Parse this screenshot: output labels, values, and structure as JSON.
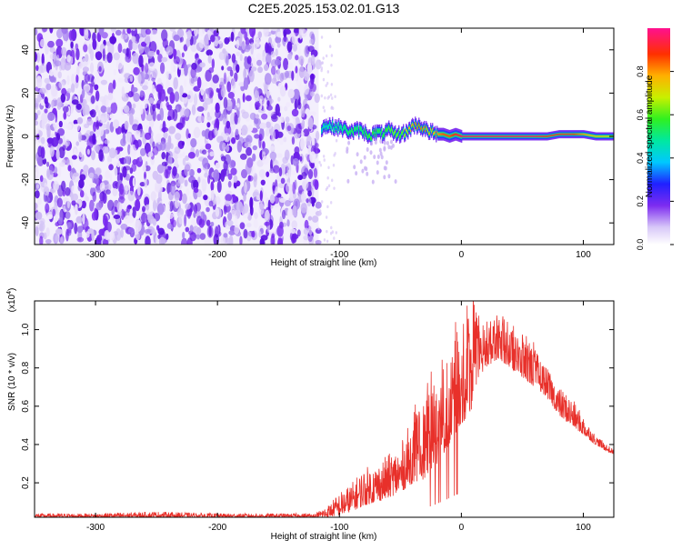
{
  "chart_data": [
    {
      "type": "heatmap",
      "title": "C2E5.2025.153.02.01.G13",
      "xlabel": "Height of straight line (km)",
      "ylabel": "Frequency (Hz)",
      "xlim": [
        -350,
        125
      ],
      "ylim": [
        -50,
        50
      ],
      "xticks": [
        -300,
        -200,
        -100,
        0,
        100
      ],
      "xtick_labels": [
        "-300",
        "-200",
        "-100",
        "0",
        "100"
      ],
      "yticks": [
        -40,
        -20,
        0,
        20,
        40
      ],
      "ytick_labels": [
        "-40",
        "-20",
        "0",
        "20",
        "40"
      ],
      "noise_region_km": [
        -350,
        -117
      ],
      "signal_track": {
        "x": [
          -115,
          -110,
          -100,
          -95,
          -90,
          -85,
          -80,
          -75,
          -70,
          -65,
          -60,
          -55,
          -50,
          -45,
          -40,
          -35,
          -30,
          -25,
          -20,
          -15,
          -10,
          -5,
          0,
          10,
          20,
          40,
          60,
          70,
          80,
          90,
          100,
          110,
          125
        ],
        "freq": [
          4,
          5,
          4,
          3,
          2,
          3,
          2,
          0,
          2,
          1,
          3,
          1,
          1,
          2,
          5,
          5,
          3,
          2,
          1,
          1,
          0,
          1,
          0,
          0,
          0,
          0,
          0,
          0,
          1,
          1,
          1,
          0,
          0
        ],
        "amplitude": [
          0.35,
          0.4,
          0.45,
          0.5,
          0.55,
          0.5,
          0.55,
          0.6,
          0.55,
          0.55,
          0.6,
          0.65,
          0.6,
          0.7,
          0.8,
          0.85,
          0.8,
          0.75,
          0.8,
          0.85,
          0.85,
          0.9,
          0.95,
          0.95,
          0.95,
          0.95,
          0.95,
          0.9,
          0.9,
          0.9,
          0.8,
          0.75,
          0.7
        ]
      },
      "colorbar": {
        "label": "Normalized spectral amplitude",
        "range": [
          0,
          1
        ],
        "ticks": [
          0.0,
          0.2,
          0.4,
          0.6,
          0.8
        ],
        "tick_labels": [
          "0.0",
          "0.2",
          "0.4",
          "0.6",
          "0.8"
        ]
      }
    },
    {
      "type": "line",
      "xlabel": "Height of straight line (km)",
      "ylabel": "SNR (10 * v/v)",
      "yscale_label": "(x10",
      "yscale_exponent": "4",
      "yscale_close": ")",
      "xlim": [
        -350,
        125
      ],
      "ylim": [
        0.02,
        1.15
      ],
      "xticks": [
        -300,
        -200,
        -100,
        0,
        100
      ],
      "xtick_labels": [
        "-300",
        "-200",
        "-100",
        "0",
        "100"
      ],
      "yticks": [
        0.2,
        0.4,
        0.6,
        0.8,
        1.0
      ],
      "ytick_labels": [
        "0.2",
        "0.4",
        "0.6",
        "0.8",
        "1.0"
      ],
      "color": "#e8302a",
      "series": [
        {
          "name": "SNR",
          "x": [
            -350,
            -300,
            -250,
            -200,
            -150,
            -120,
            -110,
            -100,
            -90,
            -80,
            -70,
            -60,
            -50,
            -40,
            -30,
            -20,
            -10,
            0,
            5,
            10,
            15,
            20,
            30,
            40,
            50,
            60,
            70,
            80,
            90,
            100,
            110,
            120,
            125
          ],
          "envelope_low": [
            0.02,
            0.02,
            0.02,
            0.02,
            0.02,
            0.02,
            0.02,
            0.03,
            0.05,
            0.08,
            0.1,
            0.12,
            0.15,
            0.2,
            0.22,
            0.3,
            0.4,
            0.5,
            0.55,
            0.6,
            0.75,
            0.8,
            0.85,
            0.8,
            0.75,
            0.7,
            0.65,
            0.55,
            0.5,
            0.45,
            0.4,
            0.36,
            0.35
          ],
          "envelope_high": [
            0.04,
            0.04,
            0.05,
            0.04,
            0.04,
            0.04,
            0.08,
            0.15,
            0.2,
            0.28,
            0.3,
            0.35,
            0.4,
            0.55,
            0.6,
            0.8,
            0.9,
            1.0,
            1.1,
            1.15,
            1.0,
            1.05,
            1.06,
            1.0,
            0.95,
            0.9,
            0.8,
            0.7,
            0.65,
            0.55,
            0.45,
            0.4,
            0.37
          ]
        }
      ]
    }
  ]
}
